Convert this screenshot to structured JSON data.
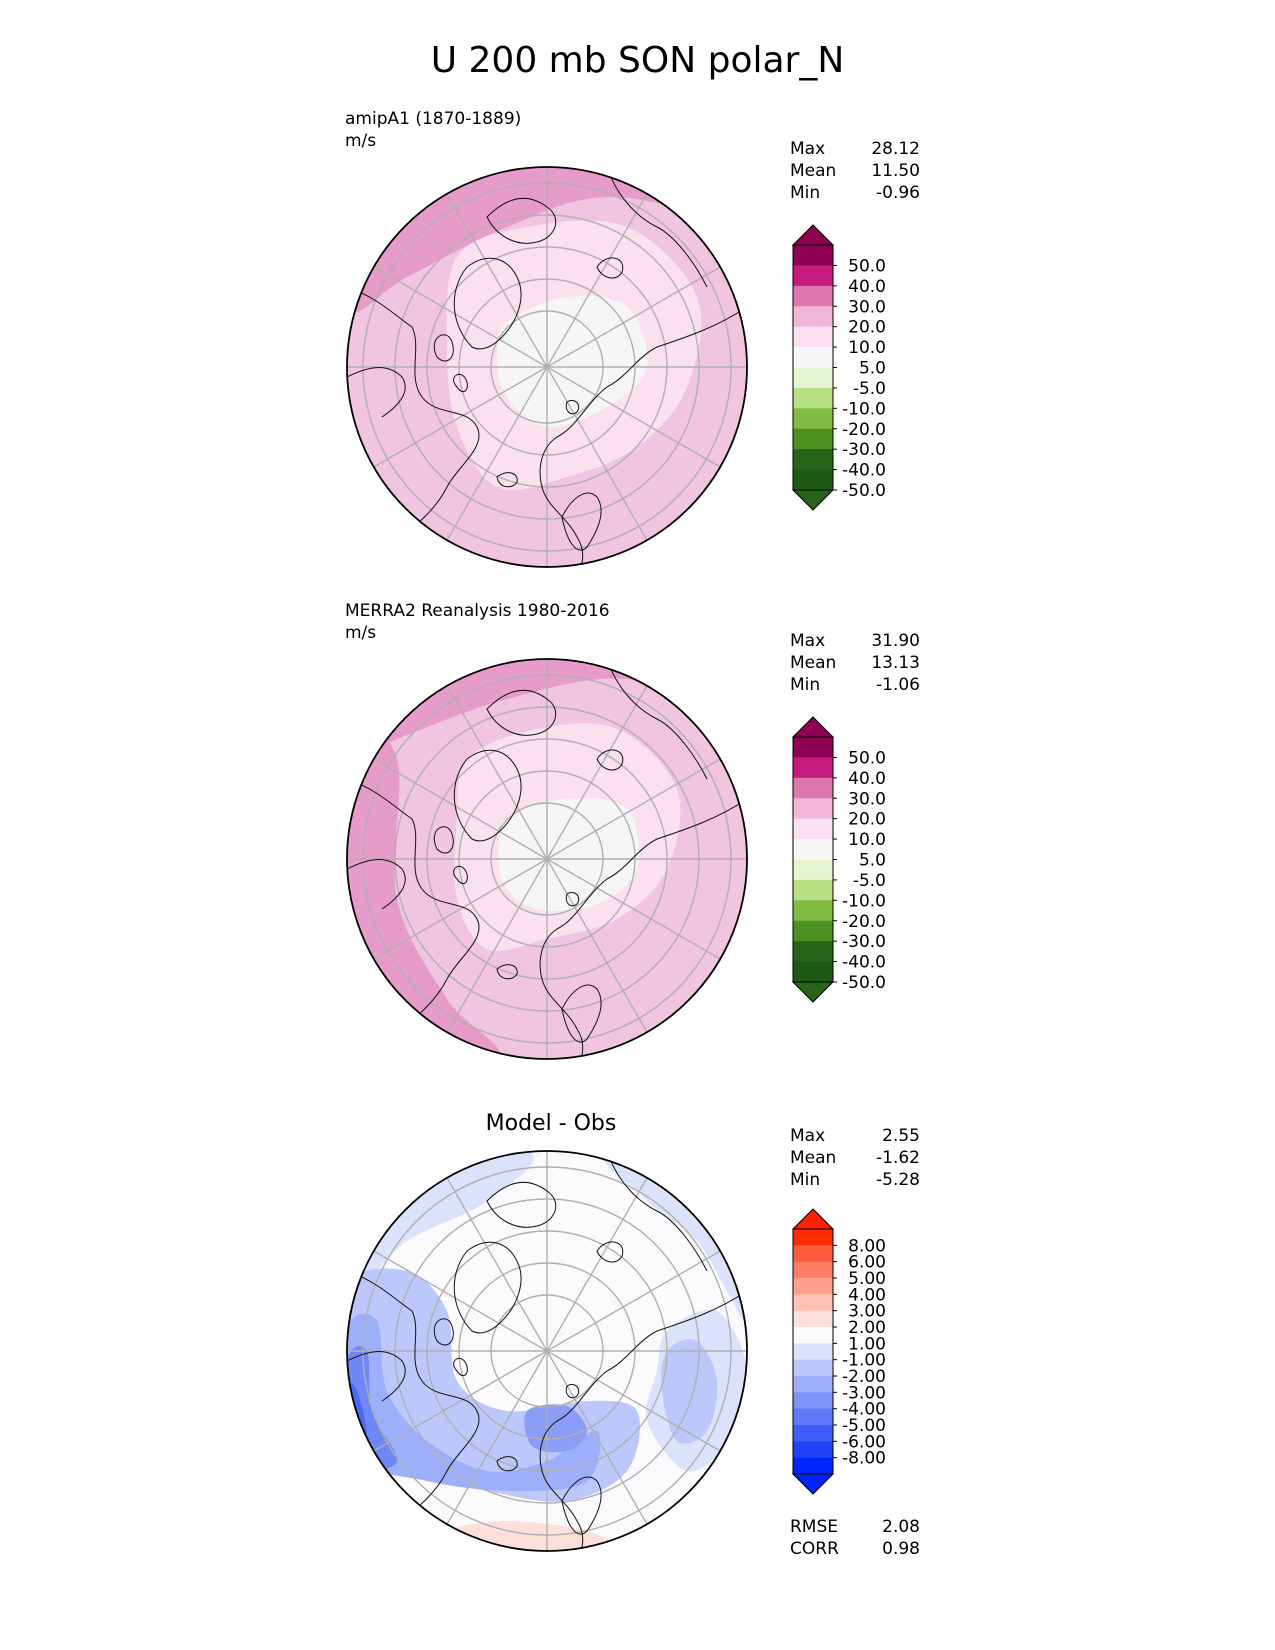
{
  "title": "U 200 mb SON polar_N",
  "panels": [
    {
      "id": "model",
      "label_line1": "amipA1 (1870-1889)",
      "label_line2": "m/s",
      "center_title": "",
      "stats": [
        {
          "label": "Max",
          "value": "28.12"
        },
        {
          "label": "Mean",
          "value": "11.50"
        },
        {
          "label": "Min",
          "value": "-0.96"
        }
      ],
      "colorbar": {
        "ticks": [
          "50.0",
          "40.0",
          "30.0",
          "20.0",
          "10.0",
          "5.0",
          "-5.0",
          "-10.0",
          "-20.0",
          "-30.0",
          "-40.0",
          "-50.0"
        ],
        "colors": [
          "#8e0152",
          "#c51b7d",
          "#de77ae",
          "#f1b6da",
          "#fde0ef",
          "#f7f7f7",
          "#e6f5d0",
          "#b8e186",
          "#7fbc41",
          "#4d9221",
          "#276419",
          "#1f5a14"
        ],
        "over_color": "#8e0152",
        "under_color": "#276419"
      }
    },
    {
      "id": "obs",
      "label_line1": "MERRA2 Reanalysis 1980-2016",
      "label_line2": "m/s",
      "center_title": "",
      "stats": [
        {
          "label": "Max",
          "value": "31.90"
        },
        {
          "label": "Mean",
          "value": "13.13"
        },
        {
          "label": "Min",
          "value": "-1.06"
        }
      ],
      "colorbar": {
        "ticks": [
          "50.0",
          "40.0",
          "30.0",
          "20.0",
          "10.0",
          "5.0",
          "-5.0",
          "-10.0",
          "-20.0",
          "-30.0",
          "-40.0",
          "-50.0"
        ],
        "colors": [
          "#8e0152",
          "#c51b7d",
          "#de77ae",
          "#f1b6da",
          "#fde0ef",
          "#f7f7f7",
          "#e6f5d0",
          "#b8e186",
          "#7fbc41",
          "#4d9221",
          "#276419",
          "#1f5a14"
        ],
        "over_color": "#8e0152",
        "under_color": "#276419"
      }
    },
    {
      "id": "diff",
      "label_line1": "",
      "label_line2": "",
      "center_title": "Model - Obs",
      "stats": [
        {
          "label": "Max",
          "value": "2.55"
        },
        {
          "label": "Mean",
          "value": "-1.62"
        },
        {
          "label": "Min",
          "value": "-5.28"
        }
      ],
      "bottom_stats": [
        {
          "label": "RMSE",
          "value": "2.08"
        },
        {
          "label": "CORR",
          "value": "0.98"
        }
      ],
      "colorbar": {
        "ticks": [
          "8.00",
          "6.00",
          "5.00",
          "4.00",
          "3.00",
          "2.00",
          "1.00",
          "-1.00",
          "-2.00",
          "-3.00",
          "-4.00",
          "-5.00",
          "-6.00",
          "-8.00"
        ],
        "colors": [
          "#fe2a00",
          "#fe5a3b",
          "#fe7d64",
          "#fea08d",
          "#fec1b3",
          "#fde0d9",
          "#fcfcfc",
          "#dbe2fc",
          "#bcc7fb",
          "#9daefa",
          "#7f94fa",
          "#5e79fa",
          "#3e5efa",
          "#1e41fa",
          "#0026ff"
        ],
        "over_color": "#ff2200",
        "under_color": "#0022ff"
      }
    }
  ]
}
